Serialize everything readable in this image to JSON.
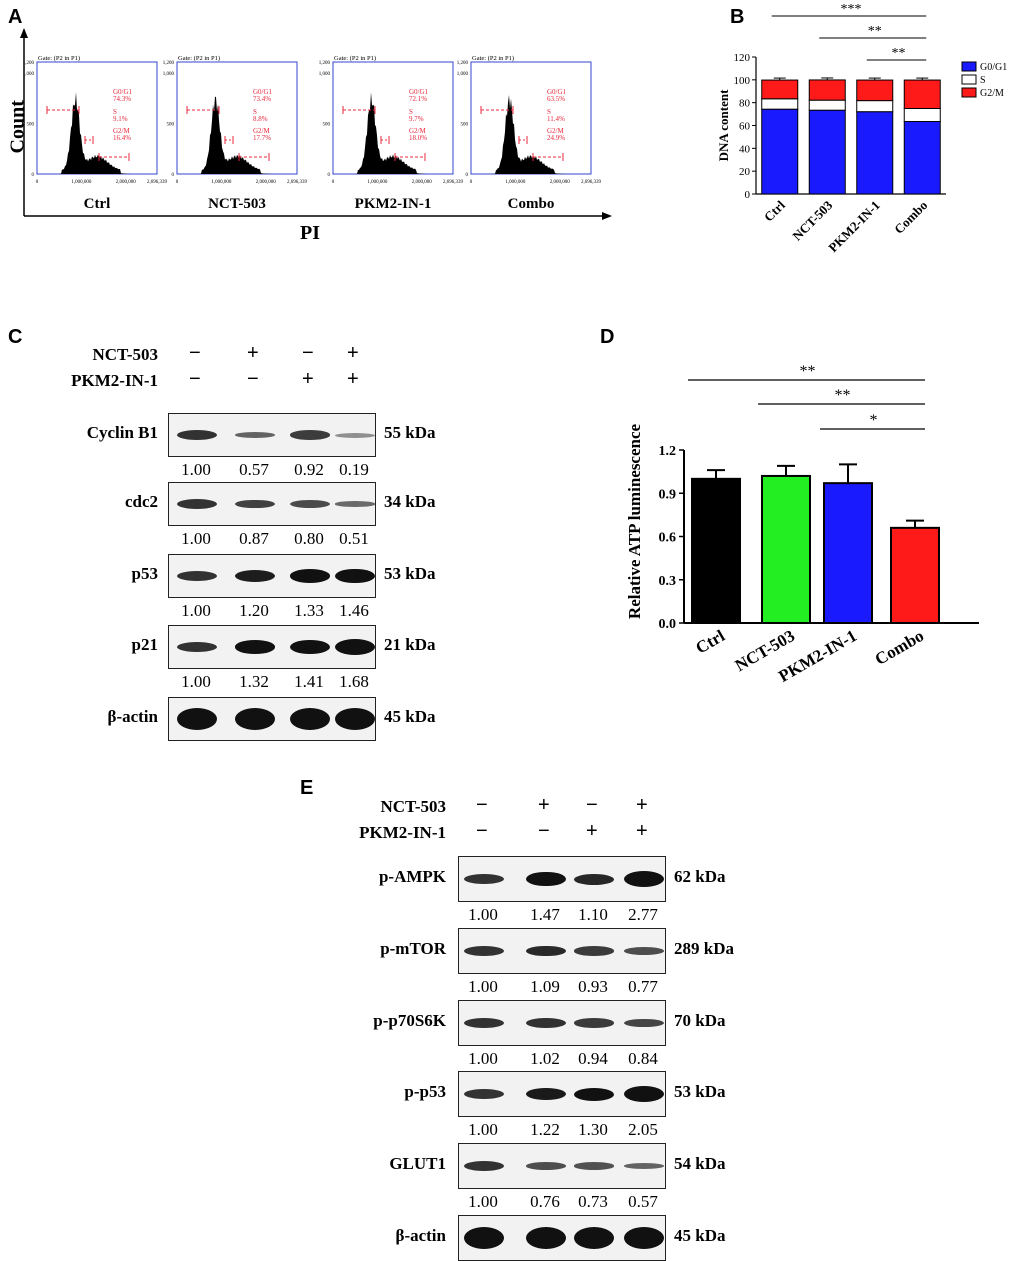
{
  "panels": {
    "A": "A",
    "B": "B",
    "C": "C",
    "D": "D",
    "E": "E"
  },
  "panelA": {
    "y_label": "Count",
    "x_label": "PI",
    "plots": [
      {
        "name": "Ctrl",
        "gate": "Gate: (P2 in P1)",
        "g0": "G0/G1",
        "g0v": "74.3%",
        "s": "S",
        "sv": "9.1%",
        "g2": "G2/M",
        "g2v": "16.4%"
      },
      {
        "name": "NCT-503",
        "gate": "Gate: (P2 in P1)",
        "g0": "G0/G1",
        "g0v": "73.4%",
        "s": "S",
        "sv": "8.8%",
        "g2": "G2/M",
        "g2v": "17.7%"
      },
      {
        "name": "PKM2-IN-1",
        "gate": "Gate: (P2 in P1)",
        "g0": "G0/G1",
        "g0v": "72.1%",
        "s": "S",
        "sv": "9.7%",
        "g2": "G2/M",
        "g2v": "18.0%"
      },
      {
        "name": "Combo",
        "gate": "Gate: (P2 in P1)",
        "g0": "G0/G1",
        "g0v": "63.5%",
        "s": "S",
        "sv": "11.4%",
        "g2": "G2/M",
        "g2v": "24.9%"
      }
    ],
    "y_ticks": [
      "0",
      "500",
      "1,000",
      "1,200"
    ],
    "x_ticks": [
      "0",
      "1,000,000",
      "2,000,000",
      "2,696,339"
    ]
  },
  "chart_data": [
    {
      "type": "bar",
      "title": "",
      "ylabel": "DNA content",
      "categories": [
        "Ctrl",
        "NCT-503",
        "PKM2-IN-1",
        "Combo"
      ],
      "ylim": [
        0,
        120
      ],
      "y_ticks": [
        0,
        20,
        40,
        60,
        80,
        100,
        120
      ],
      "stacked": true,
      "series": [
        {
          "name": "G0/G1",
          "values": [
            74.3,
            73.4,
            72.1,
            63.5
          ],
          "color": "#1a1aff"
        },
        {
          "name": "S",
          "values": [
            9.1,
            8.8,
            9.7,
            11.4
          ],
          "color": "#ffffff"
        },
        {
          "name": "G2/M",
          "values": [
            16.4,
            17.7,
            18.0,
            24.9
          ],
          "color": "#ff1a1a"
        }
      ],
      "significance": [
        "***",
        "**",
        "**"
      ],
      "legend": "top-right"
    },
    {
      "type": "bar",
      "title": "",
      "ylabel": "Relative ATP luminescence",
      "categories": [
        "Ctrl",
        "NCT-503",
        "PKM2-IN-1",
        "Combo"
      ],
      "values": [
        1.0,
        1.02,
        0.97,
        0.66
      ],
      "errors": [
        0.06,
        0.07,
        0.13,
        0.05
      ],
      "colors": [
        "#000000",
        "#22ee22",
        "#1a1aff",
        "#ff1a1a"
      ],
      "ylim": [
        0,
        1.2
      ],
      "y_ticks": [
        "0.0",
        "0.3",
        "0.6",
        "0.9",
        "1.2"
      ],
      "significance": [
        "**",
        "**",
        "*"
      ]
    }
  ],
  "panelC": {
    "treat1": "NCT-503",
    "treat2": "PKM2-IN-1",
    "signs1": [
      "−",
      "+",
      "−",
      "+"
    ],
    "signs2": [
      "−",
      "−",
      "+",
      "+"
    ],
    "rows": [
      {
        "protein": "Cyclin B1",
        "kda": "55 kDa",
        "q": [
          "1.00",
          "0.57",
          "0.92",
          "0.19"
        ]
      },
      {
        "protein": "cdc2",
        "kda": "34 kDa",
        "q": [
          "1.00",
          "0.87",
          "0.80",
          "0.51"
        ]
      },
      {
        "protein": "p53",
        "kda": "53 kDa",
        "q": [
          "1.00",
          "1.20",
          "1.33",
          "1.46"
        ]
      },
      {
        "protein": "p21",
        "kda": "21 kDa",
        "q": [
          "1.00",
          "1.32",
          "1.41",
          "1.68"
        ]
      },
      {
        "protein": "β-actin",
        "kda": "45 kDa",
        "q": []
      }
    ]
  },
  "panelE": {
    "treat1": "NCT-503",
    "treat2": "PKM2-IN-1",
    "signs1": [
      "−",
      "+",
      "−",
      "+"
    ],
    "signs2": [
      "−",
      "−",
      "+",
      "+"
    ],
    "rows": [
      {
        "protein": "p-AMPK",
        "kda": "62 kDa",
        "q": [
          "1.00",
          "1.47",
          "1.10",
          "2.77"
        ]
      },
      {
        "protein": "p-mTOR",
        "kda": "289 kDa",
        "q": [
          "1.00",
          "1.09",
          "0.93",
          "0.77"
        ]
      },
      {
        "protein": "p-p70S6K",
        "kda": "70 kDa",
        "q": [
          "1.00",
          "1.02",
          "0.94",
          "0.84"
        ]
      },
      {
        "protein": "p-p53",
        "kda": "53 kDa",
        "q": [
          "1.00",
          "1.22",
          "1.30",
          "2.05"
        ]
      },
      {
        "protein": "GLUT1",
        "kda": "54 kDa",
        "q": [
          "1.00",
          "0.76",
          "0.73",
          "0.57"
        ]
      },
      {
        "protein": "β-actin",
        "kda": "45 kDa",
        "q": []
      }
    ]
  }
}
